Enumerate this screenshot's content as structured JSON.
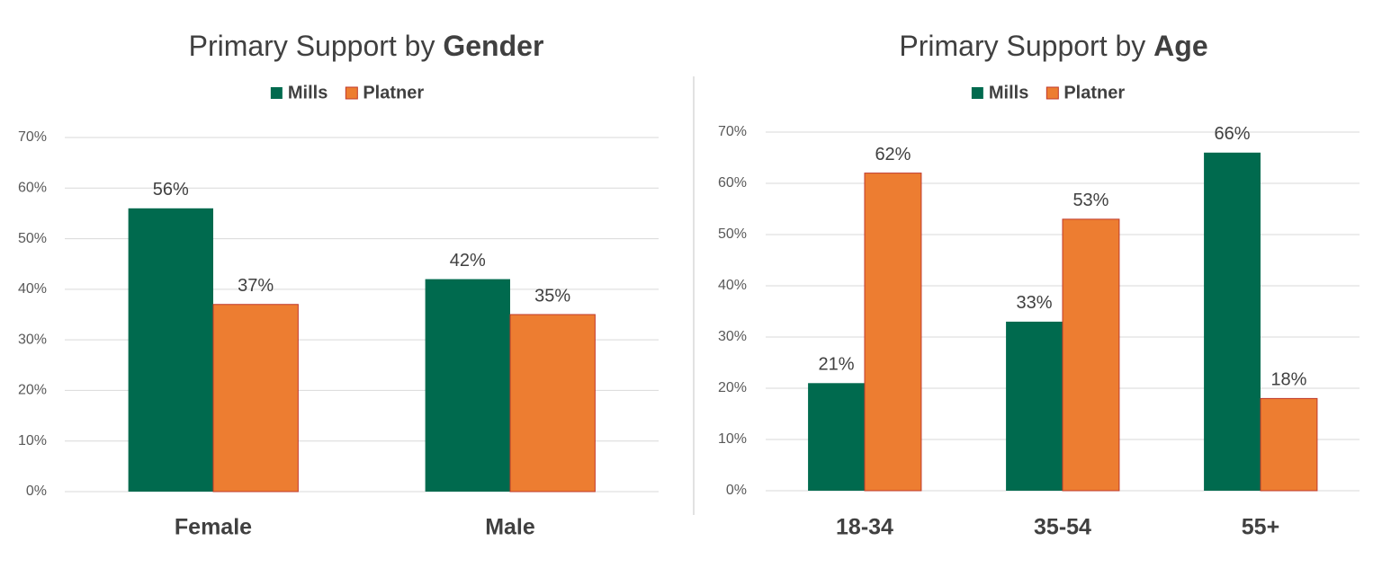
{
  "chart_data": [
    {
      "type": "bar",
      "title": [
        "Primary Support by",
        "Gender"
      ],
      "categories": [
        "Female",
        "Male"
      ],
      "series": [
        {
          "name": "Mills",
          "color": "#006a4e",
          "values": [
            56,
            42
          ],
          "value_labels": [
            "56%",
            "42%"
          ]
        },
        {
          "name": "Platner",
          "color": "#ed7d31",
          "values": [
            37,
            35
          ],
          "value_labels": [
            "37%",
            "35%"
          ]
        }
      ],
      "ylim": [
        0,
        70
      ],
      "yticks": [
        {
          "value": 0,
          "label": "0%"
        },
        {
          "value": 10,
          "label": "10%"
        },
        {
          "value": 20,
          "label": "20%"
        },
        {
          "value": 30,
          "label": "30%"
        },
        {
          "value": 40,
          "label": "40%"
        },
        {
          "value": 50,
          "label": "50%"
        },
        {
          "value": 60,
          "label": "60%"
        },
        {
          "value": 70,
          "label": "70%"
        }
      ],
      "grid": true,
      "legend": "top"
    },
    {
      "type": "bar",
      "title": [
        "Primary Support by",
        "Age"
      ],
      "categories": [
        "18-34",
        "35-54",
        "55+"
      ],
      "series": [
        {
          "name": "Mills",
          "color": "#006a4e",
          "values": [
            21,
            33,
            66
          ],
          "value_labels": [
            "21%",
            "33%",
            "66%"
          ]
        },
        {
          "name": "Platner",
          "color": "#ed7d31",
          "values": [
            62,
            53,
            18
          ],
          "value_labels": [
            "62%",
            "53%",
            "18%"
          ]
        }
      ],
      "ylim": [
        0,
        70
      ],
      "yticks": [
        {
          "value": 0,
          "label": "0%"
        },
        {
          "value": 10,
          "label": "10%"
        },
        {
          "value": 20,
          "label": "20%"
        },
        {
          "value": 30,
          "label": "30%"
        },
        {
          "value": 40,
          "label": "40%"
        },
        {
          "value": 50,
          "label": "50%"
        },
        {
          "value": 60,
          "label": "60%"
        },
        {
          "value": 70,
          "label": "70%"
        }
      ],
      "grid": true,
      "legend": "top"
    }
  ]
}
